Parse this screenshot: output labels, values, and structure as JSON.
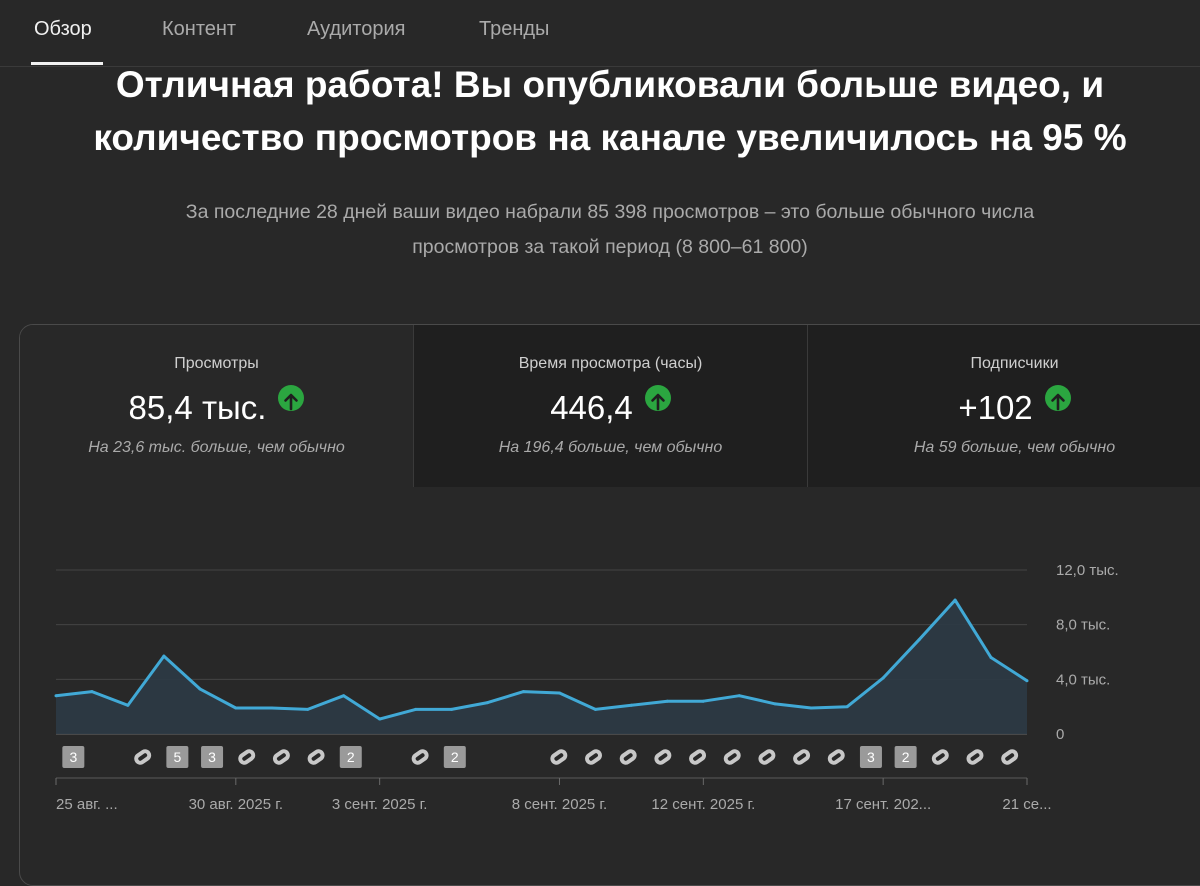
{
  "tabs": [
    "Обзор",
    "Контент",
    "Аудитория",
    "Тренды"
  ],
  "headline": {
    "line1": "Отличная работа! Вы опубликовали больше видео, и",
    "line2": "количество просмотров на канале увеличилось на 95 %"
  },
  "subtext": {
    "line1": "За последние 28 дней ваши видео набрали 85 398 просмотров – это больше обычного числа",
    "line2": "просмотров за такой период (8 800–61 800)"
  },
  "metrics": [
    {
      "label": "Просмотры",
      "value": "85,4 тыс.",
      "note": "На 23,6 тыс. больше, чем обычно"
    },
    {
      "label": "Время просмотра (часы)",
      "value": "446,4",
      "note": "На 196,4 больше, чем обычно"
    },
    {
      "label": "Подписчики",
      "value": "+102",
      "note": "На 59 больше, чем обычно"
    }
  ],
  "colors": {
    "line": "#41a9d6",
    "up": "#2ba640"
  },
  "chart_data": {
    "type": "area",
    "series": [
      {
        "name": "Просмотры",
        "values": [
          2800,
          3100,
          2100,
          5700,
          3300,
          1900,
          1900,
          1800,
          2800,
          1100,
          1800,
          1800,
          2300,
          3100,
          3000,
          1800,
          2100,
          2400,
          2400,
          2800,
          2200,
          1900,
          2000,
          4100,
          6900,
          9800,
          5600,
          3900
        ]
      }
    ],
    "yticks": [
      "12,0 тыс.",
      "8,0 тыс.",
      "4,0 тыс.",
      "0"
    ],
    "ytick_values": [
      12000,
      8000,
      4000,
      0
    ],
    "ylim": [
      0,
      12000
    ],
    "xlabels": [
      {
        "index": 0,
        "text": "25 авг. ..."
      },
      {
        "index": 5,
        "text": "30 авг. 2025 г."
      },
      {
        "index": 9,
        "text": "3 сент. 2025 г."
      },
      {
        "index": 14,
        "text": "8 сент. 2025 г."
      },
      {
        "index": 18,
        "text": "12 сент. 2025 г."
      },
      {
        "index": 23,
        "text": "17 сент. 202..."
      },
      {
        "index": 27,
        "text": "21 се..."
      }
    ],
    "markers": [
      {
        "index": 1,
        "kind": "num",
        "label": "3"
      },
      {
        "index": 3,
        "kind": "shorts"
      },
      {
        "index": 4,
        "kind": "num",
        "label": "5"
      },
      {
        "index": 5,
        "kind": "num",
        "label": "3"
      },
      {
        "index": 6,
        "kind": "shorts"
      },
      {
        "index": 7,
        "kind": "shorts"
      },
      {
        "index": 8,
        "kind": "shorts"
      },
      {
        "index": 9,
        "kind": "num",
        "label": "2"
      },
      {
        "index": 11,
        "kind": "shorts"
      },
      {
        "index": 12,
        "kind": "num",
        "label": "2"
      },
      {
        "index": 15,
        "kind": "shorts"
      },
      {
        "index": 16,
        "kind": "shorts"
      },
      {
        "index": 17,
        "kind": "shorts"
      },
      {
        "index": 18,
        "kind": "shorts"
      },
      {
        "index": 19,
        "kind": "shorts"
      },
      {
        "index": 20,
        "kind": "shorts"
      },
      {
        "index": 21,
        "kind": "shorts"
      },
      {
        "index": 22,
        "kind": "shorts"
      },
      {
        "index": 23,
        "kind": "shorts"
      },
      {
        "index": 24,
        "kind": "num",
        "label": "3"
      },
      {
        "index": 25,
        "kind": "num",
        "label": "2"
      },
      {
        "index": 26,
        "kind": "shorts"
      },
      {
        "index": 27,
        "kind": "shorts"
      },
      {
        "index": 28,
        "kind": "shorts"
      }
    ]
  }
}
